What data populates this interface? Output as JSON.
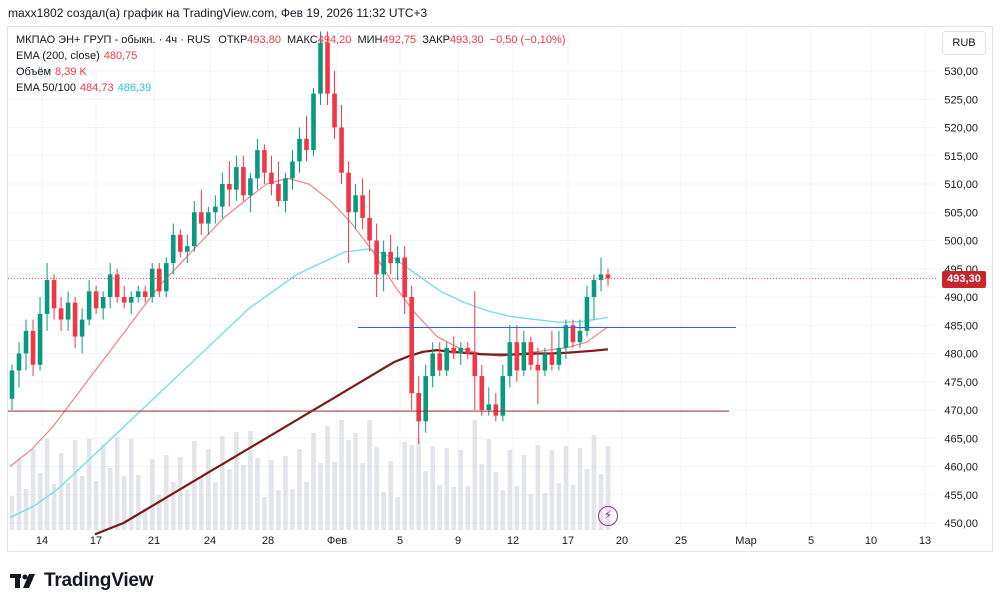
{
  "header": {
    "author_line": "maxx1802 создал(а) график на TradingView.com, Фев 19, 2026 11:32 UTC+3"
  },
  "legend": {
    "symbol": "МКПАО ЭН+ ГРУП - обыкн.",
    "interval": "4ч",
    "exchange": "RUS",
    "open_label": "ОТКР",
    "open": "493,80",
    "high_label": "МАКС",
    "high": "494,20",
    "low_label": "МИН",
    "low": "492,75",
    "close_label": "ЗАКР",
    "close": "493,30",
    "change": "−0,50 (−0,10%)",
    "ema200_label": "EMA (200, close)",
    "ema200_value": "480,75",
    "volume_label": "Объём",
    "volume_value": "8,39 K",
    "ema_cross_label": "EMA 50/100",
    "ema50_value": "484,73",
    "ema100_value": "486,39"
  },
  "currency_button": "RUB",
  "last_price_tag": "493,30",
  "brand": "TradingView",
  "colors": {
    "up": "#089981",
    "down": "#f23645",
    "ema200": "#7a1a1a",
    "ema50": "#f57f7f",
    "ema100": "#80deea",
    "hline": "#2962ff",
    "hline2": "#a03030",
    "volume": "#d1d4dc"
  },
  "chart_data": {
    "type": "candlestick",
    "y_ticks": [
      "450,00",
      "455,00",
      "460,00",
      "465,00",
      "470,00",
      "475,00",
      "480,00",
      "485,00",
      "490,00",
      "495,00",
      "500,00",
      "505,00",
      "510,00",
      "515,00",
      "520,00",
      "525,00",
      "530,00"
    ],
    "ylim": [
      449,
      537
    ],
    "x_ticks": [
      "14",
      "17",
      "21",
      "24",
      "28",
      "Фев",
      "5",
      "9",
      "12",
      "17",
      "20",
      "25",
      "Мар",
      "5",
      "10",
      "13"
    ],
    "horizontal_lines": [
      484.6,
      469.8
    ],
    "last_close": 493.3,
    "candles": [
      {
        "o": 472,
        "h": 478,
        "l": 470,
        "c": 477
      },
      {
        "o": 477,
        "h": 482,
        "l": 474,
        "c": 480
      },
      {
        "o": 480,
        "h": 486,
        "l": 477,
        "c": 484
      },
      {
        "o": 484,
        "h": 486,
        "l": 476,
        "c": 478
      },
      {
        "o": 478,
        "h": 490,
        "l": 477,
        "c": 487
      },
      {
        "o": 487,
        "h": 496,
        "l": 484,
        "c": 493
      },
      {
        "o": 493,
        "h": 494,
        "l": 486,
        "c": 488
      },
      {
        "o": 488,
        "h": 490,
        "l": 484,
        "c": 486
      },
      {
        "o": 486,
        "h": 491,
        "l": 484,
        "c": 489
      },
      {
        "o": 489,
        "h": 490,
        "l": 481,
        "c": 483
      },
      {
        "o": 483,
        "h": 488,
        "l": 480,
        "c": 486
      },
      {
        "o": 486,
        "h": 493,
        "l": 485,
        "c": 491
      },
      {
        "o": 491,
        "h": 492,
        "l": 487,
        "c": 488
      },
      {
        "o": 488,
        "h": 491,
        "l": 486,
        "c": 490
      },
      {
        "o": 490,
        "h": 496,
        "l": 488,
        "c": 494
      },
      {
        "o": 494,
        "h": 495,
        "l": 489,
        "c": 490
      },
      {
        "o": 490,
        "h": 492,
        "l": 488,
        "c": 489
      },
      {
        "o": 489,
        "h": 491,
        "l": 487,
        "c": 490
      },
      {
        "o": 490,
        "h": 492,
        "l": 489,
        "c": 491
      },
      {
        "o": 491,
        "h": 492,
        "l": 489,
        "c": 490
      },
      {
        "o": 490,
        "h": 496,
        "l": 489,
        "c": 495
      },
      {
        "o": 495,
        "h": 496,
        "l": 490,
        "c": 491
      },
      {
        "o": 491,
        "h": 497,
        "l": 490,
        "c": 496
      },
      {
        "o": 496,
        "h": 503,
        "l": 494,
        "c": 501
      },
      {
        "o": 501,
        "h": 502,
        "l": 497,
        "c": 498
      },
      {
        "o": 498,
        "h": 501,
        "l": 496,
        "c": 499
      },
      {
        "o": 499,
        "h": 507,
        "l": 498,
        "c": 505
      },
      {
        "o": 505,
        "h": 509,
        "l": 501,
        "c": 503
      },
      {
        "o": 503,
        "h": 506,
        "l": 501,
        "c": 505
      },
      {
        "o": 505,
        "h": 508,
        "l": 503,
        "c": 506
      },
      {
        "o": 506,
        "h": 512,
        "l": 504,
        "c": 510
      },
      {
        "o": 510,
        "h": 514,
        "l": 506,
        "c": 509
      },
      {
        "o": 509,
        "h": 515,
        "l": 507,
        "c": 513
      },
      {
        "o": 513,
        "h": 515,
        "l": 507,
        "c": 508
      },
      {
        "o": 508,
        "h": 512,
        "l": 505,
        "c": 511
      },
      {
        "o": 511,
        "h": 518,
        "l": 509,
        "c": 516
      },
      {
        "o": 516,
        "h": 517,
        "l": 510,
        "c": 512
      },
      {
        "o": 512,
        "h": 515,
        "l": 508,
        "c": 510
      },
      {
        "o": 510,
        "h": 514,
        "l": 506,
        "c": 507
      },
      {
        "o": 507,
        "h": 512,
        "l": 505,
        "c": 511
      },
      {
        "o": 511,
        "h": 516,
        "l": 509,
        "c": 514
      },
      {
        "o": 514,
        "h": 520,
        "l": 512,
        "c": 518
      },
      {
        "o": 518,
        "h": 522,
        "l": 514,
        "c": 516
      },
      {
        "o": 516,
        "h": 527,
        "l": 515,
        "c": 526
      },
      {
        "o": 526,
        "h": 537,
        "l": 524,
        "c": 535
      },
      {
        "o": 535,
        "h": 537,
        "l": 524,
        "c": 526
      },
      {
        "o": 526,
        "h": 530,
        "l": 518,
        "c": 520
      },
      {
        "o": 520,
        "h": 524,
        "l": 510,
        "c": 512
      },
      {
        "o": 512,
        "h": 514,
        "l": 496,
        "c": 505
      },
      {
        "o": 505,
        "h": 510,
        "l": 502,
        "c": 508
      },
      {
        "o": 508,
        "h": 511,
        "l": 502,
        "c": 504
      },
      {
        "o": 504,
        "h": 509,
        "l": 498,
        "c": 500
      },
      {
        "o": 500,
        "h": 503,
        "l": 490,
        "c": 494
      },
      {
        "o": 494,
        "h": 500,
        "l": 491,
        "c": 498
      },
      {
        "o": 498,
        "h": 501,
        "l": 494,
        "c": 496
      },
      {
        "o": 496,
        "h": 499,
        "l": 493,
        "c": 497
      },
      {
        "o": 497,
        "h": 499,
        "l": 487,
        "c": 490
      },
      {
        "o": 490,
        "h": 492,
        "l": 470,
        "c": 473
      },
      {
        "o": 473,
        "h": 476,
        "l": 464,
        "c": 468
      },
      {
        "o": 468,
        "h": 478,
        "l": 466,
        "c": 476
      },
      {
        "o": 476,
        "h": 482,
        "l": 474,
        "c": 480
      },
      {
        "o": 480,
        "h": 482,
        "l": 476,
        "c": 477
      },
      {
        "o": 477,
        "h": 482,
        "l": 476,
        "c": 481
      },
      {
        "o": 481,
        "h": 483,
        "l": 479,
        "c": 480
      },
      {
        "o": 480,
        "h": 482,
        "l": 478,
        "c": 481
      },
      {
        "o": 481,
        "h": 482,
        "l": 479,
        "c": 480
      },
      {
        "o": 480,
        "h": 491,
        "l": 470,
        "c": 476
      },
      {
        "o": 476,
        "h": 478,
        "l": 469,
        "c": 470
      },
      {
        "o": 470,
        "h": 474,
        "l": 469,
        "c": 471
      },
      {
        "o": 471,
        "h": 473,
        "l": 468,
        "c": 469
      },
      {
        "o": 469,
        "h": 478,
        "l": 468,
        "c": 476
      },
      {
        "o": 476,
        "h": 485,
        "l": 474,
        "c": 482
      },
      {
        "o": 482,
        "h": 485,
        "l": 475,
        "c": 477
      },
      {
        "o": 477,
        "h": 484,
        "l": 476,
        "c": 482
      },
      {
        "o": 482,
        "h": 483,
        "l": 477,
        "c": 478
      },
      {
        "o": 478,
        "h": 481,
        "l": 471,
        "c": 477
      },
      {
        "o": 477,
        "h": 481,
        "l": 476,
        "c": 480
      },
      {
        "o": 480,
        "h": 484,
        "l": 477,
        "c": 478
      },
      {
        "o": 478,
        "h": 484,
        "l": 477,
        "c": 481
      },
      {
        "o": 481,
        "h": 486,
        "l": 479,
        "c": 485
      },
      {
        "o": 485,
        "h": 486,
        "l": 481,
        "c": 482
      },
      {
        "o": 482,
        "h": 486,
        "l": 481,
        "c": 484
      },
      {
        "o": 484,
        "h": 492,
        "l": 483,
        "c": 490
      },
      {
        "o": 490,
        "h": 494,
        "l": 486,
        "c": 493
      },
      {
        "o": 493,
        "h": 497,
        "l": 491,
        "c": 494
      },
      {
        "o": 494,
        "h": 495,
        "l": 492,
        "c": 493.3
      }
    ],
    "ema200": [
      448,
      449,
      450,
      451.5,
      453,
      454.5,
      456,
      457.5,
      459,
      460.5,
      462,
      463.5,
      465,
      466.5,
      468,
      469.5,
      471,
      472.5,
      474,
      475.5,
      477,
      478.5,
      479.5,
      480.3,
      480.6,
      480.3,
      480.1,
      479.9,
      479.8,
      479.8,
      479.9,
      480,
      480,
      480.1,
      480.3,
      480.5,
      480.75
    ],
    "ema50": [
      460,
      463,
      467,
      472,
      477,
      482,
      487,
      492,
      496,
      500,
      504,
      507,
      510,
      511,
      510,
      507,
      503,
      498,
      492,
      487,
      483,
      481,
      480,
      479.5,
      480,
      480.5,
      481,
      482,
      484.73
    ],
    "ema100": [
      451,
      453,
      456,
      460,
      464,
      468,
      472,
      476,
      480,
      484,
      488,
      491,
      494,
      496,
      498,
      498.5,
      497,
      494,
      491,
      489,
      487.5,
      486.5,
      486,
      485.5,
      485.7,
      486.39
    ]
  }
}
